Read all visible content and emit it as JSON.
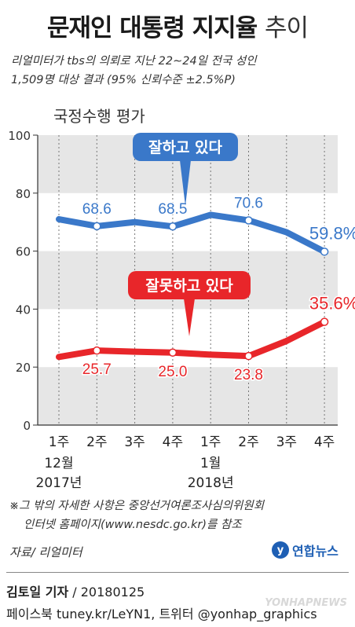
{
  "title": {
    "main": "문재인 대통령 지지율",
    "suffix": "추이"
  },
  "subtitle": {
    "line1": "리얼미터가 tbs의 의뢰로 지난 22∼24일 전국 성인",
    "line2": "1,509명 대상 결과 (95% 신뢰수준 ±2.5%P)"
  },
  "chart_label": "국정수행 평가",
  "chart_data": {
    "type": "line",
    "categories": [
      "1주",
      "2주",
      "3주",
      "4주",
      "1주",
      "2주",
      "3주",
      "4주"
    ],
    "month_labels": [
      {
        "month": "12월",
        "year": "2017년",
        "index": 0
      },
      {
        "month": "1월",
        "year": "2018년",
        "index": 4
      }
    ],
    "ylim": [
      0,
      100
    ],
    "yticks": [
      0,
      20,
      40,
      60,
      80,
      100
    ],
    "grid": true,
    "series": [
      {
        "name": "잘하고 있다",
        "color": "#3a78c9",
        "values": [
          71.0,
          68.6,
          70.0,
          68.5,
          72.5,
          70.6,
          66.5,
          59.8
        ],
        "labels": [
          {
            "index": 1,
            "text": "68.6"
          },
          {
            "index": 3,
            "text": "68.5"
          },
          {
            "index": 5,
            "text": "70.6"
          },
          {
            "index": 7,
            "text": "59.8%"
          }
        ]
      },
      {
        "name": "잘못하고 있다",
        "color": "#e8262a",
        "values": [
          23.5,
          25.7,
          25.3,
          25.0,
          24.3,
          23.8,
          29.0,
          35.6
        ],
        "labels": [
          {
            "index": 1,
            "text": "25.7"
          },
          {
            "index": 3,
            "text": "25.0"
          },
          {
            "index": 5,
            "text": "23.8"
          },
          {
            "index": 7,
            "text": "35.6%"
          }
        ]
      }
    ]
  },
  "footnote": {
    "line1": "※그 밖의 자세한 사항은 중앙선거여론조사심의위원회",
    "line2": "인터넷 홈페이지(www.nesdc.go.kr)를 참조"
  },
  "source": "자료/ 리얼미터",
  "logo_text": "연합뉴스",
  "credit": {
    "name": "김토일 기자",
    "date": "/ 20180125"
  },
  "social": "페이스북 tuney.kr/LeYN1, 트위터 @yonhap_graphics",
  "watermark": "YONHAPNEWS"
}
